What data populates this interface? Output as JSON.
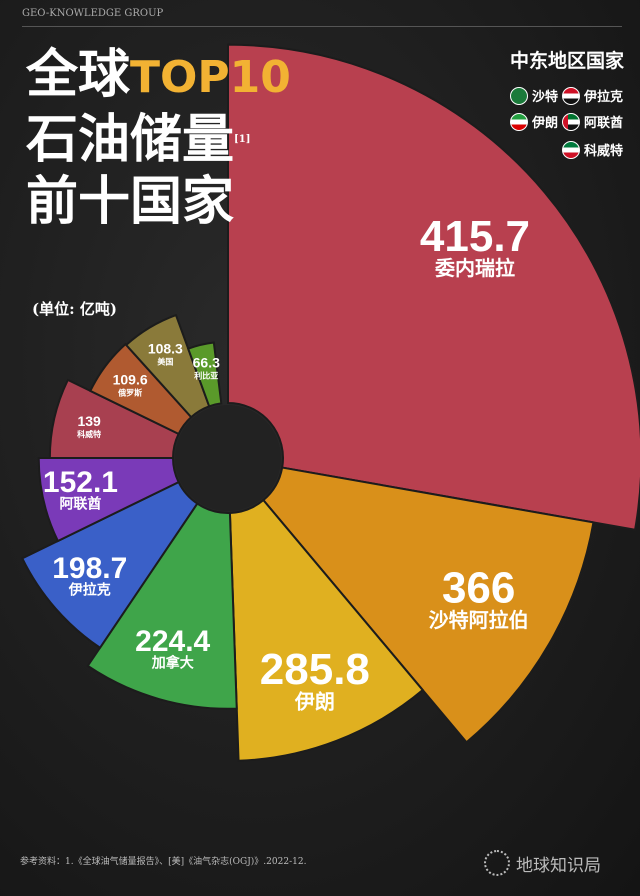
{
  "header": {
    "group": "GEO-KNOWLEDGE GROUP",
    "title_line1_prefix": "全球",
    "title_line1_highlight": "TOP10",
    "title_line2": "石油储量",
    "footnote_mark": "[1]",
    "title_line3": "前十国家",
    "unit": "(单位: 亿吨)"
  },
  "legend": {
    "title": "中东地区国家",
    "items": [
      {
        "label": "沙特",
        "flag": "saudi"
      },
      {
        "label": "伊拉克",
        "flag": "iraq"
      },
      {
        "label": "伊朗",
        "flag": "iran"
      },
      {
        "label": "阿联酋",
        "flag": "uae"
      },
      {
        "label": "科威特",
        "flag": "kuwait"
      }
    ]
  },
  "chart_data": {
    "type": "polar-area",
    "categories": [
      "委内瑞拉",
      "沙特阿拉伯",
      "伊朗",
      "加拿大",
      "伊拉克",
      "阿联酋",
      "科威特",
      "俄罗斯",
      "美国",
      "利比亚"
    ],
    "values": [
      415.7,
      366,
      285.8,
      224.4,
      198.7,
      152.1,
      139,
      109.6,
      108.3,
      66.3
    ],
    "value_labels": [
      "415.7",
      "366",
      "285.8",
      "224.4",
      "198.7",
      "152.1",
      "139",
      "109.6",
      "108.3",
      "66.3"
    ],
    "colors": [
      "#b8404f",
      "#d9901a",
      "#e0b020",
      "#3fa54a",
      "#3a60c8",
      "#7a3ab8",
      "#a84050",
      "#b05a30",
      "#8a7a3a",
      "#5a9a2a"
    ]
  },
  "watermark": "地球知识局",
  "footer": {
    "reference": "参考资料：1.《全球油气储量报告》、[美]《油气杂志(OGJ)》.2022-12.",
    "brand": "地球知识局"
  }
}
